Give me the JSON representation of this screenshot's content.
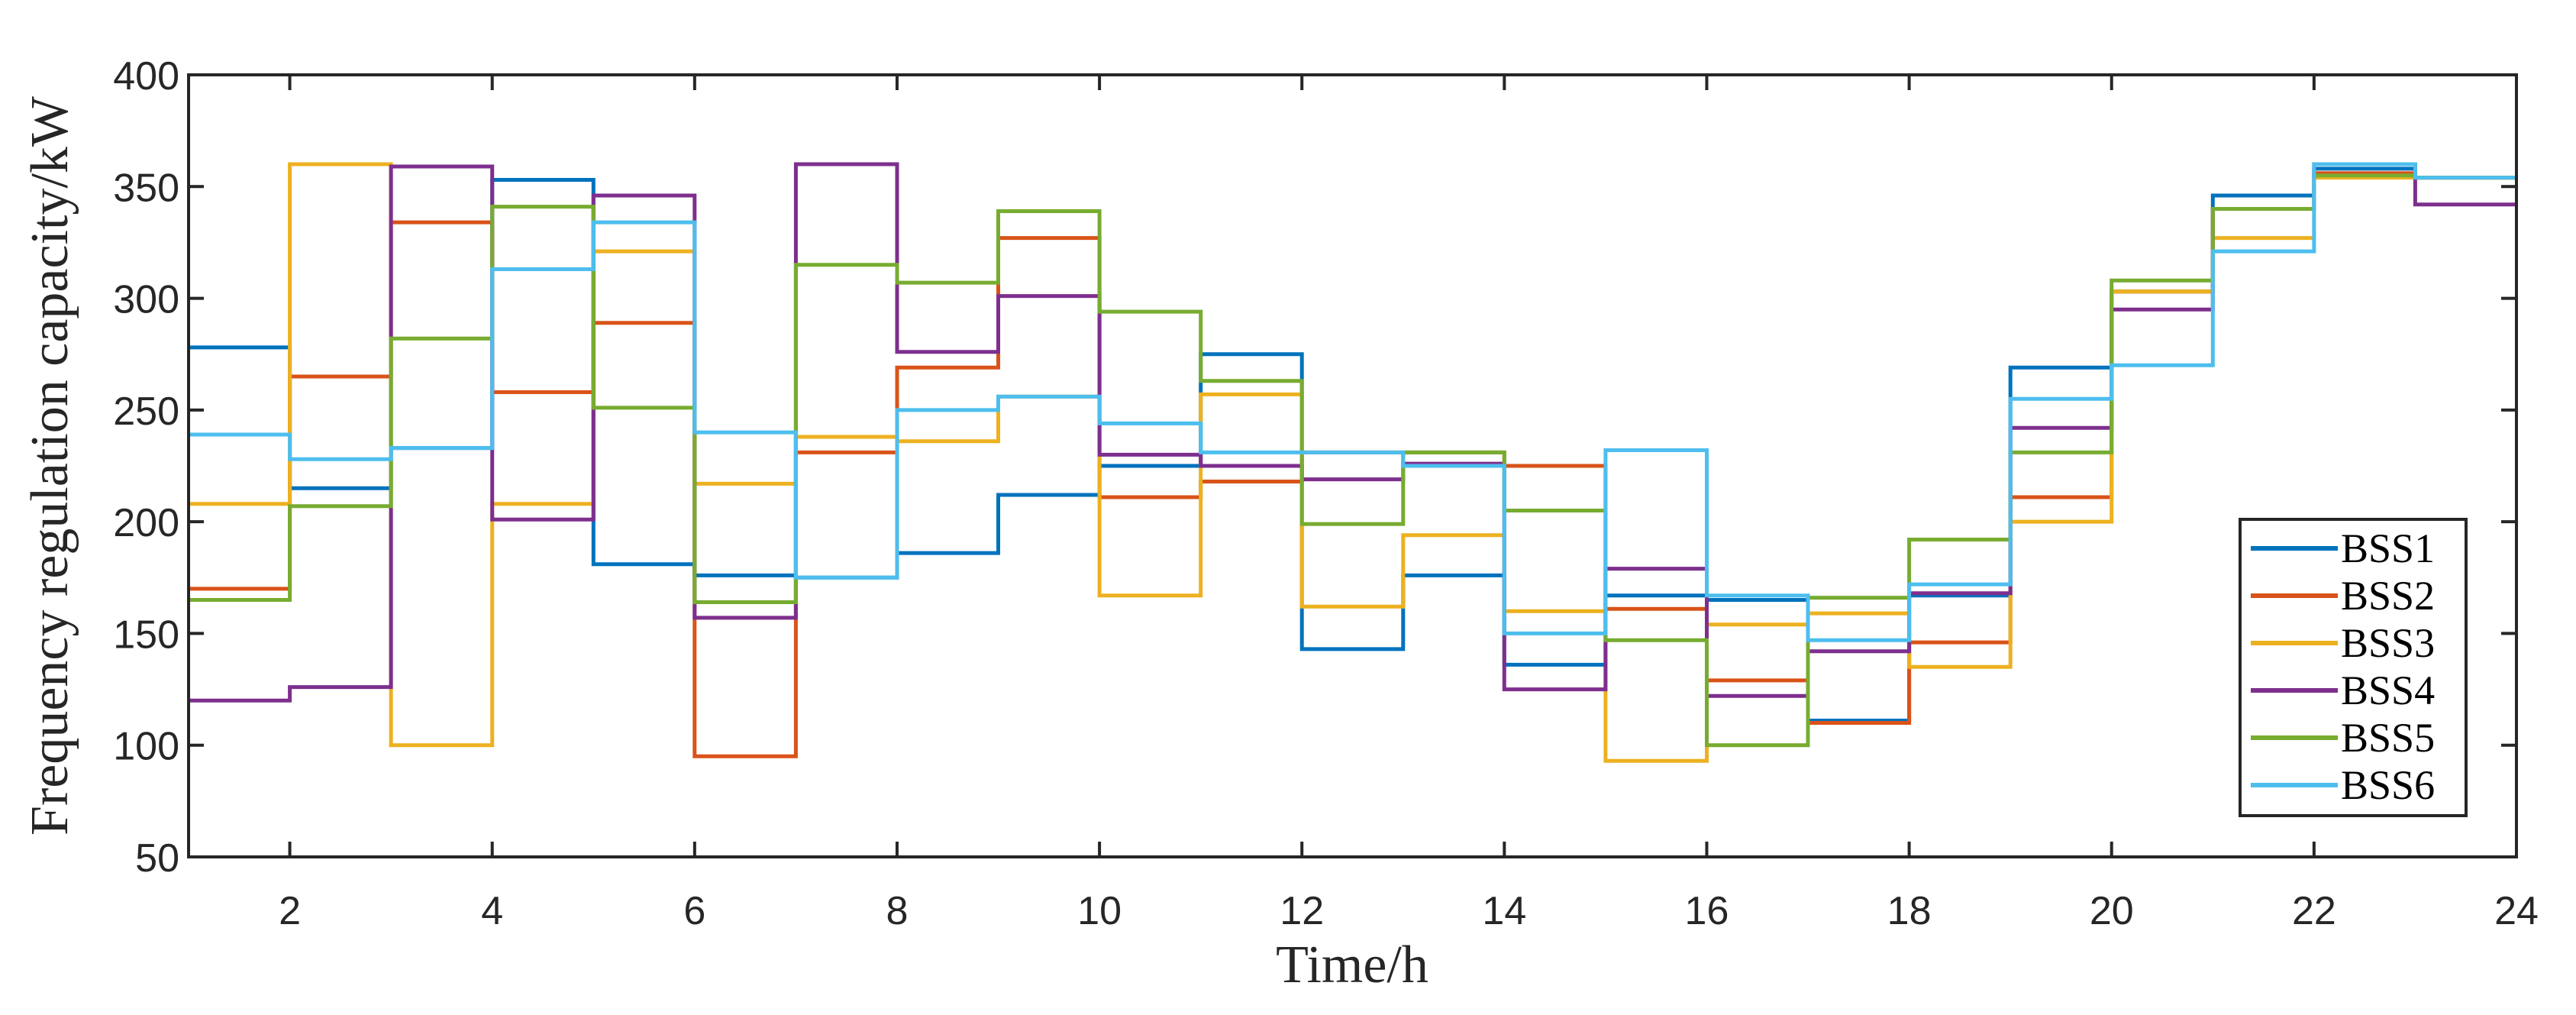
{
  "chart_data": {
    "type": "line",
    "step": "post",
    "title": "",
    "xlabel": "Time/h",
    "ylabel": "Frequency regulation capacity/kW",
    "xlim": [
      1,
      24
    ],
    "ylim": [
      50,
      400
    ],
    "xticks": [
      2,
      4,
      6,
      8,
      10,
      12,
      14,
      16,
      18,
      20,
      22,
      24
    ],
    "yticks": [
      50,
      100,
      150,
      200,
      250,
      300,
      350,
      400
    ],
    "legend_position": "bottom-right",
    "grid": false,
    "hours": [
      1,
      2,
      3,
      4,
      5,
      6,
      7,
      8,
      9,
      10,
      11,
      12,
      13,
      14,
      15,
      16,
      17,
      18,
      19,
      20,
      21,
      22,
      23
    ],
    "series": [
      {
        "name": "BSS1",
        "color": "#0072BD",
        "values": [
          278,
          215,
          233,
          353,
          181,
          176,
          175,
          186,
          212,
          225,
          275,
          143,
          176,
          136,
          167,
          165,
          111,
          167,
          269,
          303,
          346,
          358,
          354
        ]
      },
      {
        "name": "BSS2",
        "color": "#D95319",
        "values": [
          170,
          265,
          334,
          258,
          289,
          95,
          231,
          269,
          327,
          211,
          218,
          231,
          231,
          225,
          161,
          129,
          110,
          146,
          211,
          303,
          340,
          356,
          354
        ]
      },
      {
        "name": "BSS3",
        "color": "#EDB120",
        "values": [
          208,
          360,
          100,
          208,
          321,
          217,
          238,
          236,
          256,
          167,
          257,
          162,
          194,
          160,
          93,
          154,
          159,
          135,
          200,
          303,
          327,
          354,
          354
        ]
      },
      {
        "name": "BSS4",
        "color": "#7E2F8E",
        "values": [
          120,
          126,
          359,
          201,
          346,
          157,
          360,
          276,
          301,
          230,
          225,
          219,
          226,
          125,
          179,
          122,
          142,
          168,
          242,
          295,
          340,
          360,
          342
        ]
      },
      {
        "name": "BSS5",
        "color": "#77AC30",
        "values": [
          165,
          207,
          282,
          341,
          251,
          164,
          315,
          307,
          339,
          294,
          263,
          199,
          231,
          205,
          147,
          100,
          166,
          192,
          231,
          308,
          340,
          355,
          354
        ]
      },
      {
        "name": "BSS6",
        "color": "#4DBEEE",
        "values": [
          239,
          228,
          233,
          313,
          334,
          240,
          175,
          250,
          256,
          244,
          231,
          231,
          225,
          150,
          232,
          167,
          147,
          172,
          255,
          270,
          321,
          360,
          354
        ]
      }
    ]
  }
}
